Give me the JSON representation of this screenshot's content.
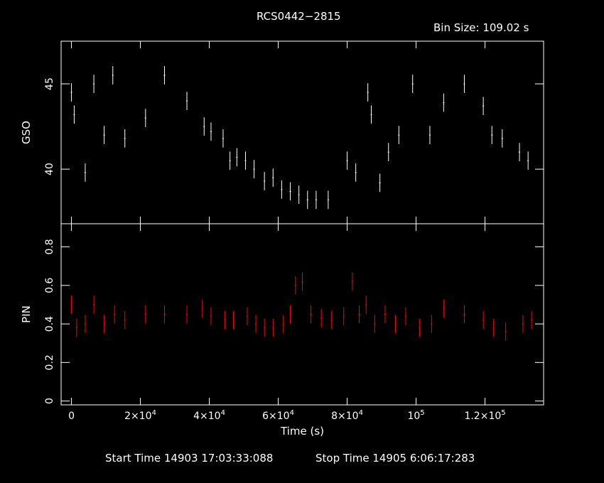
{
  "chart_data": [
    {
      "type": "scatter",
      "panel": "top",
      "title": "RCS0442−2815",
      "subtitle": "Bin Size: 109.02 s",
      "ylabel": "GSO",
      "xlim": [
        -3000,
        137000
      ],
      "ylim": [
        36.8,
        47.5
      ],
      "yticks": [
        {
          "value": 40,
          "label": "40"
        },
        {
          "value": 45,
          "label": "45"
        }
      ],
      "color": "#ffffff",
      "series": [
        {
          "x": [
            0,
            800,
            4000,
            6500,
            9500,
            12000,
            15500,
            21500,
            27000,
            33500,
            38500,
            40500,
            44000,
            46000,
            48000,
            50500,
            53000,
            56000,
            58500,
            61000,
            63500,
            66000,
            68500,
            71000,
            74500,
            80000,
            82500,
            86000,
            87000,
            89500,
            92000,
            95000,
            99000,
            104000,
            108000,
            114000,
            119500,
            122000,
            125000,
            130000,
            132500
          ],
          "y": [
            44.5,
            43.2,
            39.8,
            45.0,
            42.0,
            45.5,
            41.8,
            43.0,
            45.5,
            44.0,
            42.5,
            42.2,
            41.8,
            40.5,
            40.7,
            40.5,
            40.0,
            39.3,
            39.5,
            38.8,
            38.7,
            38.5,
            38.2,
            38.2,
            38.2,
            40.5,
            39.8,
            44.5,
            43.2,
            39.2,
            41.0,
            42.0,
            45.0,
            42.0,
            43.9,
            45.0,
            43.7,
            42.0,
            41.8,
            41.0,
            40.5
          ]
        }
      ]
    },
    {
      "type": "scatter",
      "panel": "bottom",
      "ylabel": "PIN",
      "xlabel": "Time (s)",
      "xlim": [
        -3000,
        137000
      ],
      "ylim": [
        -0.02,
        0.92
      ],
      "yticks": [
        {
          "value": 0,
          "label": "0"
        },
        {
          "value": 0.2,
          "label": "0.2"
        },
        {
          "value": 0.4,
          "label": "0.4"
        },
        {
          "value": 0.6,
          "label": "0.6"
        },
        {
          "value": 0.8,
          "label": "0.8"
        }
      ],
      "xticks": [
        {
          "value": 0,
          "label": "0"
        },
        {
          "value": 20000,
          "label": "2×10",
          "sup": "4"
        },
        {
          "value": 40000,
          "label": "4×10",
          "sup": "4"
        },
        {
          "value": 60000,
          "label": "6×10",
          "sup": "4"
        },
        {
          "value": 80000,
          "label": "8×10",
          "sup": "4"
        },
        {
          "value": 100000,
          "label": "10",
          "sup": "5"
        },
        {
          "value": 120000,
          "label": "1.2×10",
          "sup": "5"
        }
      ],
      "color": "#ff0000",
      "series": [
        {
          "x": [
            0,
            1500,
            4000,
            6500,
            9500,
            12500,
            15500,
            21500,
            27000,
            33500,
            38000,
            40500,
            44500,
            47000,
            51000,
            53500,
            56000,
            58500,
            61500,
            63500,
            65000,
            67000,
            69500,
            72500,
            75500,
            79000,
            81500,
            83500,
            85500,
            88000,
            91000,
            94000,
            97000,
            101000,
            104500,
            108000,
            114000,
            119500,
            122500,
            126000,
            131000,
            133500
          ],
          "y": [
            0.5,
            0.38,
            0.4,
            0.5,
            0.4,
            0.45,
            0.42,
            0.45,
            0.45,
            0.45,
            0.48,
            0.44,
            0.42,
            0.42,
            0.44,
            0.4,
            0.38,
            0.38,
            0.4,
            0.45,
            0.6,
            0.62,
            0.45,
            0.43,
            0.42,
            0.44,
            0.62,
            0.45,
            0.5,
            0.4,
            0.45,
            0.4,
            0.44,
            0.38,
            0.4,
            0.48,
            0.45,
            0.42,
            0.38,
            0.36,
            0.4,
            0.42
          ]
        }
      ]
    }
  ],
  "footer": {
    "start_time": "Start Time 14903 17:03:33:088",
    "stop_time": "Stop Time 14905  6:06:17:283"
  }
}
